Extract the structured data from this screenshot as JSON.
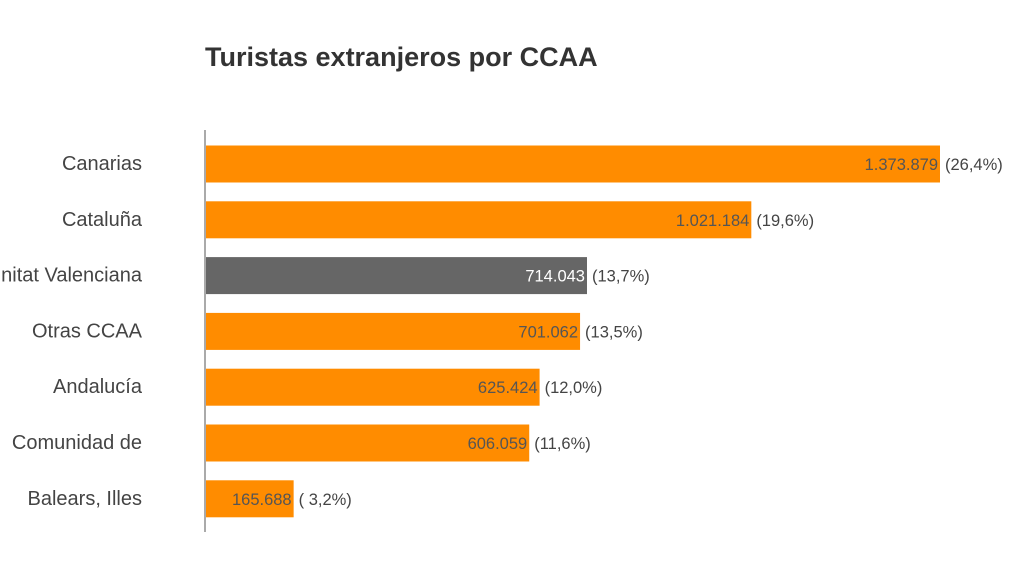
{
  "chart_data": {
    "type": "bar",
    "orientation": "horizontal",
    "title": "Turistas extranjeros por CCAA",
    "categories": [
      "Canarias",
      "Cataluña",
      "Comunitat Valenciana",
      "Otras CCAA",
      "Andalucía",
      "Comunidad de",
      "Balears, Illes"
    ],
    "values": [
      1373879,
      1021184,
      714043,
      701062,
      625424,
      606059,
      165688
    ],
    "value_labels": [
      "1.373.879",
      "1.021.184",
      "714.043",
      "701.062",
      "625.424",
      "606.059",
      "165.688"
    ],
    "percent_labels": [
      "(26,4%)",
      "(19,6%)",
      "(13,7%)",
      "(13,5%)",
      "(12,0%)",
      "(11,6%)",
      "( 3,2%)"
    ],
    "highlight_index": 2,
    "colors": {
      "bar": "#FF8C00",
      "highlight": "#666666",
      "text": "#444444"
    },
    "xlim": [
      0,
      1373879
    ],
    "grid": false,
    "legend": "none",
    "xlabel": "",
    "ylabel": ""
  }
}
